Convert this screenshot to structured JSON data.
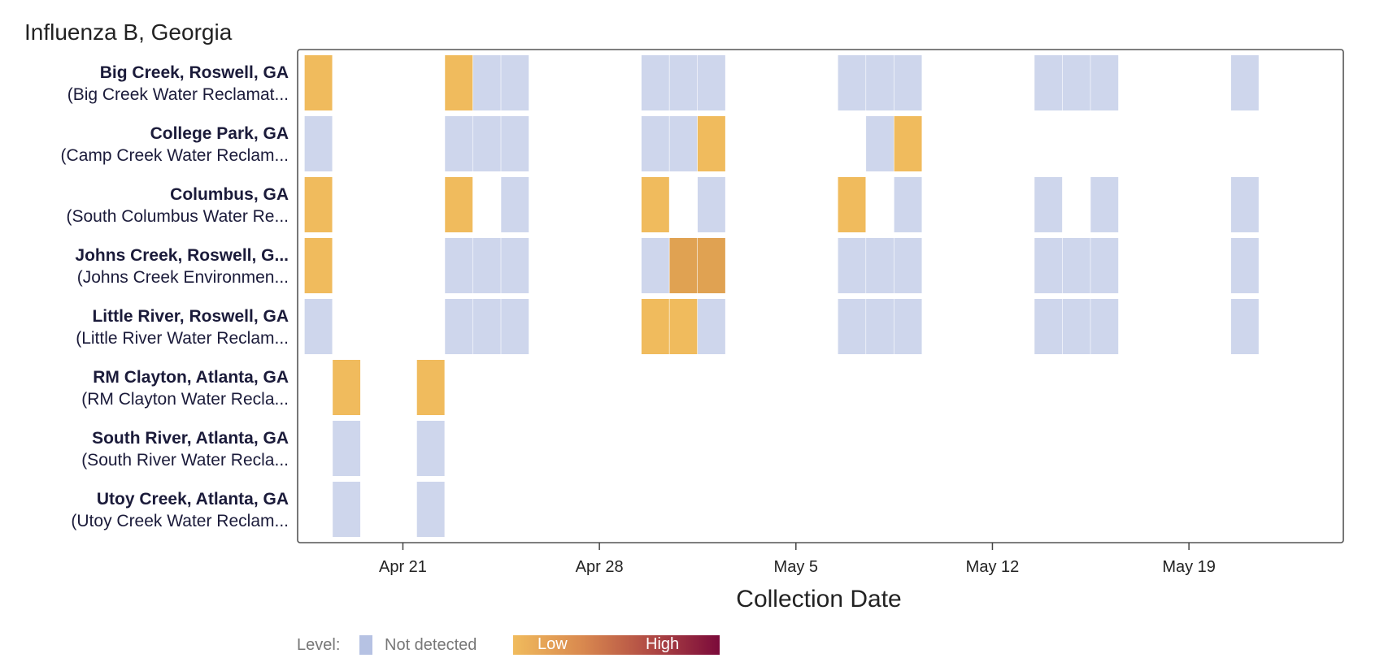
{
  "chart_data": {
    "type": "heatmap",
    "title": "Influenza B, Georgia",
    "xlabel": "Collection Date",
    "x_ticks": [
      "Apr 21",
      "Apr 28",
      "May 5",
      "May 12",
      "May 19"
    ],
    "x_tick_days": [
      3,
      10,
      17,
      24,
      31
    ],
    "x_range_days": [
      -0.75,
      36.5
    ],
    "day_origin_label": "Apr 18",
    "rows": [
      {
        "name": "Big Creek, Roswell, GA",
        "facility": "(Big Creek Water Reclamat..."
      },
      {
        "name": "College Park, GA",
        "facility": "(Camp Creek Water Reclam..."
      },
      {
        "name": "Columbus, GA",
        "facility": "(South Columbus Water Re..."
      },
      {
        "name": "Johns Creek, Roswell, G...",
        "facility": "(Johns Creek Environmen..."
      },
      {
        "name": "Little River, Roswell, GA",
        "facility": "(Little River Water Reclam..."
      },
      {
        "name": "RM Clayton, Atlanta, GA",
        "facility": "(RM Clayton Water Recla..."
      },
      {
        "name": "South River, Atlanta, GA",
        "facility": "(South River Water Recla..."
      },
      {
        "name": "Utoy Creek, Atlanta, GA",
        "facility": "(Utoy Creek Water Reclam..."
      }
    ],
    "cells": [
      {
        "row": 0,
        "day": 0,
        "level": "low"
      },
      {
        "row": 0,
        "day": 5,
        "level": "low"
      },
      {
        "row": 0,
        "day": 6,
        "level": "not_detected"
      },
      {
        "row": 0,
        "day": 7,
        "level": "not_detected"
      },
      {
        "row": 0,
        "day": 12,
        "level": "not_detected"
      },
      {
        "row": 0,
        "day": 13,
        "level": "not_detected"
      },
      {
        "row": 0,
        "day": 14,
        "level": "not_detected"
      },
      {
        "row": 0,
        "day": 19,
        "level": "not_detected"
      },
      {
        "row": 0,
        "day": 20,
        "level": "not_detected"
      },
      {
        "row": 0,
        "day": 21,
        "level": "not_detected"
      },
      {
        "row": 0,
        "day": 26,
        "level": "not_detected"
      },
      {
        "row": 0,
        "day": 27,
        "level": "not_detected"
      },
      {
        "row": 0,
        "day": 28,
        "level": "not_detected"
      },
      {
        "row": 0,
        "day": 33,
        "level": "not_detected"
      },
      {
        "row": 1,
        "day": 0,
        "level": "not_detected"
      },
      {
        "row": 1,
        "day": 5,
        "level": "not_detected"
      },
      {
        "row": 1,
        "day": 6,
        "level": "not_detected"
      },
      {
        "row": 1,
        "day": 7,
        "level": "not_detected"
      },
      {
        "row": 1,
        "day": 12,
        "level": "not_detected"
      },
      {
        "row": 1,
        "day": 13,
        "level": "not_detected"
      },
      {
        "row": 1,
        "day": 14,
        "level": "low"
      },
      {
        "row": 1,
        "day": 20,
        "level": "not_detected"
      },
      {
        "row": 1,
        "day": 21,
        "level": "low"
      },
      {
        "row": 2,
        "day": 0,
        "level": "low"
      },
      {
        "row": 2,
        "day": 5,
        "level": "low"
      },
      {
        "row": 2,
        "day": 7,
        "level": "not_detected"
      },
      {
        "row": 2,
        "day": 12,
        "level": "low"
      },
      {
        "row": 2,
        "day": 14,
        "level": "not_detected"
      },
      {
        "row": 2,
        "day": 19,
        "level": "low"
      },
      {
        "row": 2,
        "day": 21,
        "level": "not_detected"
      },
      {
        "row": 2,
        "day": 26,
        "level": "not_detected"
      },
      {
        "row": 2,
        "day": 28,
        "level": "not_detected"
      },
      {
        "row": 2,
        "day": 33,
        "level": "not_detected"
      },
      {
        "row": 3,
        "day": 0,
        "level": "low"
      },
      {
        "row": 3,
        "day": 5,
        "level": "not_detected"
      },
      {
        "row": 3,
        "day": 6,
        "level": "not_detected"
      },
      {
        "row": 3,
        "day": 7,
        "level": "not_detected"
      },
      {
        "row": 3,
        "day": 12,
        "level": "not_detected"
      },
      {
        "row": 3,
        "day": 13,
        "level": "low_medium"
      },
      {
        "row": 3,
        "day": 14,
        "level": "low_medium"
      },
      {
        "row": 3,
        "day": 19,
        "level": "not_detected"
      },
      {
        "row": 3,
        "day": 20,
        "level": "not_detected"
      },
      {
        "row": 3,
        "day": 21,
        "level": "not_detected"
      },
      {
        "row": 3,
        "day": 26,
        "level": "not_detected"
      },
      {
        "row": 3,
        "day": 27,
        "level": "not_detected"
      },
      {
        "row": 3,
        "day": 28,
        "level": "not_detected"
      },
      {
        "row": 3,
        "day": 33,
        "level": "not_detected"
      },
      {
        "row": 4,
        "day": 0,
        "level": "not_detected"
      },
      {
        "row": 4,
        "day": 5,
        "level": "not_detected"
      },
      {
        "row": 4,
        "day": 6,
        "level": "not_detected"
      },
      {
        "row": 4,
        "day": 7,
        "level": "not_detected"
      },
      {
        "row": 4,
        "day": 12,
        "level": "low"
      },
      {
        "row": 4,
        "day": 13,
        "level": "low"
      },
      {
        "row": 4,
        "day": 14,
        "level": "not_detected"
      },
      {
        "row": 4,
        "day": 19,
        "level": "not_detected"
      },
      {
        "row": 4,
        "day": 20,
        "level": "not_detected"
      },
      {
        "row": 4,
        "day": 21,
        "level": "not_detected"
      },
      {
        "row": 4,
        "day": 26,
        "level": "not_detected"
      },
      {
        "row": 4,
        "day": 27,
        "level": "not_detected"
      },
      {
        "row": 4,
        "day": 28,
        "level": "not_detected"
      },
      {
        "row": 4,
        "day": 33,
        "level": "not_detected"
      },
      {
        "row": 5,
        "day": 1,
        "level": "low"
      },
      {
        "row": 5,
        "day": 4,
        "level": "low"
      },
      {
        "row": 6,
        "day": 1,
        "level": "not_detected"
      },
      {
        "row": 6,
        "day": 4,
        "level": "not_detected"
      },
      {
        "row": 7,
        "day": 1,
        "level": "not_detected"
      },
      {
        "row": 7,
        "day": 4,
        "level": "not_detected"
      }
    ],
    "colors": {
      "not_detected": "#ced6ec",
      "low": "#f0bb5d",
      "low_medium": "#e0a252",
      "high": "#7b0a3a",
      "frame": "#555555",
      "legend_swatch": "#b6c2e3"
    },
    "legend": {
      "label": "Level:",
      "not_detected": "Not detected",
      "low": "Low",
      "high": "High",
      "gradient": [
        "#f0bb5d",
        "#d9894f",
        "#b04a44",
        "#7b0a3a"
      ]
    },
    "grid": false,
    "legend_position": "bottom"
  }
}
